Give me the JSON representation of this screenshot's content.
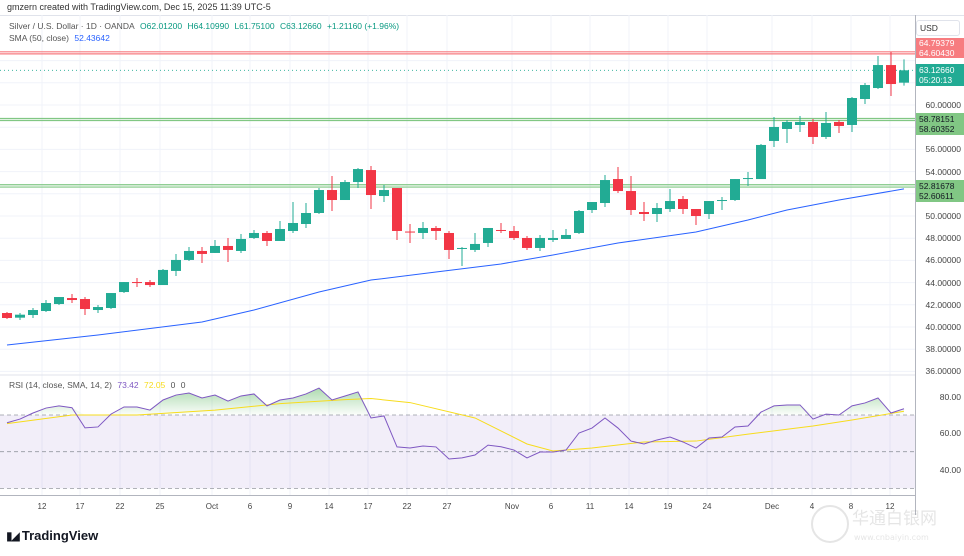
{
  "credit": "gmzern created with TradingView.com, Dec 15, 2025 11:39 UTC-5",
  "symbol": {
    "title": "Silver / U.S. Dollar · 1D · OANDA",
    "open": "O62.01200",
    "high": "H64.10990",
    "low": "L61.75100",
    "close": "C63.12660",
    "change": "+1.21160 (+1.96%)"
  },
  "sma_legend": {
    "label": "SMA (50, close)",
    "value": "52.43642"
  },
  "rsi_legend": {
    "label": "RSI (14, close, SMA, 14, 2)",
    "rsi": "73.42",
    "sma": "72.05",
    "z1": "0",
    "z2": "0"
  },
  "currency": "USD",
  "price_axis": [
    "60.00000",
    "56.00000",
    "54.00000",
    "50.00000",
    "48.00000",
    "46.00000",
    "44.00000",
    "42.00000",
    "40.00000",
    "38.00000",
    "36.00000"
  ],
  "rsi_axis": [
    "80.00",
    "60.00",
    "40.00"
  ],
  "price_tags": {
    "red_top": "64.79379",
    "red_bottom": "64.60430",
    "last": "63.12660",
    "countdown": "05:20:13",
    "green1_top": "58.78151",
    "green1_bottom": "58.60352",
    "green2_top": "52.81678",
    "green2_bottom": "52.60611"
  },
  "colors": {
    "up": "#22ab94",
    "down": "#f23645",
    "sma": "#2962ff",
    "rsi": "#7e57c2",
    "rsi_sma": "#f7dc1c",
    "level_green": "#81c784",
    "level_red": "#f77c80"
  },
  "x_ticks": [
    "12",
    "17",
    "22",
    "25",
    "Oct",
    "6",
    "9",
    "14",
    "17",
    "22",
    "27",
    "Nov",
    "6",
    "11",
    "14",
    "19",
    "24",
    "Dec",
    "4",
    "8",
    "12"
  ],
  "brand": "TradingView",
  "watermark": "华通白银网 www.cnbaiyin.com",
  "chart_data": {
    "type": "candlestick",
    "ohlc": [
      [
        41.26,
        41.35,
        40.72,
        40.81
      ],
      [
        40.84,
        41.26,
        40.63,
        41.11
      ],
      [
        41.08,
        41.71,
        40.81,
        41.53
      ],
      [
        41.44,
        42.43,
        41.35,
        42.16
      ],
      [
        42.07,
        42.7,
        41.98,
        42.7
      ],
      [
        42.61,
        42.97,
        42.16,
        42.43
      ],
      [
        42.52,
        42.7,
        41.08,
        41.62
      ],
      [
        41.53,
        41.98,
        41.26,
        41.8
      ],
      [
        41.71,
        43.06,
        41.62,
        43.06
      ],
      [
        43.15,
        44.05,
        43.06,
        44.05
      ],
      [
        44.05,
        44.41,
        43.6,
        44.0
      ],
      [
        44.05,
        44.23,
        43.6,
        43.78
      ],
      [
        43.78,
        45.22,
        43.78,
        45.14
      ],
      [
        45.05,
        46.58,
        44.59,
        46.04
      ],
      [
        46.04,
        47.21,
        45.95,
        46.85
      ],
      [
        46.85,
        47.21,
        45.77,
        46.58
      ],
      [
        46.67,
        47.84,
        46.67,
        47.3
      ],
      [
        47.3,
        48.02,
        45.86,
        46.94
      ],
      [
        46.85,
        48.38,
        46.67,
        47.93
      ],
      [
        48.02,
        48.74,
        47.93,
        48.47
      ],
      [
        48.47,
        48.65,
        47.3,
        47.75
      ],
      [
        47.75,
        49.55,
        47.75,
        48.83
      ],
      [
        48.65,
        51.26,
        48.47,
        49.37
      ],
      [
        49.28,
        51.17,
        48.92,
        50.27
      ],
      [
        50.27,
        52.52,
        50.18,
        52.34
      ],
      [
        52.34,
        53.6,
        50.45,
        51.44
      ],
      [
        51.44,
        53.24,
        51.44,
        53.06
      ],
      [
        53.06,
        54.32,
        52.52,
        54.23
      ],
      [
        54.14,
        54.5,
        50.63,
        51.89
      ],
      [
        51.8,
        52.79,
        51.26,
        52.34
      ],
      [
        52.52,
        52.52,
        47.84,
        48.65
      ],
      [
        48.6,
        49.28,
        47.57,
        48.56
      ],
      [
        48.47,
        49.46,
        47.93,
        48.92
      ],
      [
        48.92,
        49.1,
        47.84,
        48.65
      ],
      [
        48.47,
        48.65,
        46.13,
        46.94
      ],
      [
        47.03,
        47.21,
        45.5,
        47.12
      ],
      [
        46.94,
        48.47,
        46.76,
        47.48
      ],
      [
        47.57,
        48.92,
        47.21,
        48.92
      ],
      [
        48.74,
        49.37,
        48.47,
        48.65
      ],
      [
        48.65,
        49.1,
        47.84,
        48.02
      ],
      [
        48.02,
        48.2,
        46.94,
        47.12
      ],
      [
        47.12,
        48.29,
        46.85,
        48.02
      ],
      [
        47.84,
        48.74,
        47.66,
        48.02
      ],
      [
        47.93,
        48.83,
        47.93,
        48.29
      ],
      [
        48.47,
        50.54,
        48.38,
        50.45
      ],
      [
        50.54,
        51.26,
        50.27,
        51.26
      ],
      [
        51.17,
        53.69,
        50.81,
        53.24
      ],
      [
        53.33,
        54.41,
        52.07,
        52.25
      ],
      [
        52.25,
        53.6,
        50.09,
        50.54
      ],
      [
        50.36,
        51.26,
        49.55,
        50.18
      ],
      [
        50.18,
        51.17,
        49.46,
        50.72
      ],
      [
        50.63,
        52.43,
        50.36,
        51.35
      ],
      [
        51.53,
        51.8,
        50.18,
        50.63
      ],
      [
        50.63,
        50.63,
        49.19,
        50.0
      ],
      [
        50.18,
        51.35,
        49.73,
        51.35
      ],
      [
        51.4,
        51.71,
        50.54,
        51.44
      ],
      [
        51.44,
        53.33,
        51.35,
        53.33
      ],
      [
        53.38,
        53.96,
        52.7,
        53.42
      ],
      [
        53.33,
        56.49,
        53.33,
        56.4
      ],
      [
        56.76,
        58.92,
        56.22,
        58.02
      ],
      [
        57.84,
        58.65,
        56.58,
        58.47
      ],
      [
        58.2,
        59.01,
        57.57,
        58.47
      ],
      [
        58.47,
        58.74,
        56.49,
        57.12
      ],
      [
        57.12,
        59.37,
        56.94,
        58.38
      ],
      [
        58.47,
        58.65,
        57.48,
        58.11
      ],
      [
        58.2,
        60.72,
        57.57,
        60.63
      ],
      [
        60.54,
        61.98,
        60.09,
        61.8
      ],
      [
        61.53,
        64.41,
        61.44,
        63.6
      ],
      [
        63.6,
        64.77,
        60.81,
        61.89
      ],
      [
        62.012,
        64.1099,
        61.751,
        63.1266
      ]
    ],
    "sma50": [
      [
        1,
        38.38
      ],
      [
        8,
        39.28
      ],
      [
        16,
        40.45
      ],
      [
        20,
        41.53
      ],
      [
        25,
        43.15
      ],
      [
        29,
        44.23
      ],
      [
        34,
        44.95
      ],
      [
        39,
        45.68
      ],
      [
        43,
        46.49
      ],
      [
        48,
        47.57
      ],
      [
        54,
        48.56
      ],
      [
        58,
        49.64
      ],
      [
        61,
        50.54
      ],
      [
        65,
        51.44
      ],
      [
        70,
        52.44
      ]
    ],
    "levels": [
      64.79379,
      64.6043,
      58.78151,
      58.60352,
      52.81678,
      52.60611
    ],
    "rsi": [
      65.8,
      67.8,
      71.1,
      73.8,
      75,
      74,
      63,
      63.5,
      70.5,
      74.4,
      74.4,
      72.7,
      78.2,
      80.9,
      82,
      79.3,
      80.9,
      77.6,
      80.4,
      81.5,
      75,
      78.2,
      79.3,
      81.5,
      84.7,
      78.2,
      80.4,
      82.6,
      68.4,
      69.5,
      52.6,
      52,
      53.1,
      52.6,
      46,
      46.6,
      48.2,
      53.6,
      52.7,
      50.9,
      46.6,
      49.8,
      49.8,
      50.9,
      60.2,
      62.9,
      68.4,
      62.9,
      55.8,
      54.2,
      56.4,
      58,
      55.3,
      52,
      57.5,
      58,
      63.5,
      64,
      71.6,
      75,
      75.5,
      75.5,
      67.8,
      70.5,
      70,
      75,
      76.6,
      79.3,
      71.1,
      73.42
    ],
    "rsi_sma": [
      [
        1,
        65.3
      ],
      [
        6,
        70
      ],
      [
        11,
        70
      ],
      [
        17,
        72.7
      ],
      [
        22,
        76.2
      ],
      [
        27,
        78.4
      ],
      [
        29,
        79
      ],
      [
        32,
        76.8
      ],
      [
        37,
        68.4
      ],
      [
        41,
        54.2
      ],
      [
        43,
        50.4
      ],
      [
        46,
        52
      ],
      [
        50,
        55.3
      ],
      [
        54,
        55.8
      ],
      [
        58,
        59.6
      ],
      [
        63,
        64
      ],
      [
        66,
        67.3
      ],
      [
        70,
        72.05
      ]
    ],
    "rsi_bands": [
      70,
      50,
      30
    ],
    "price_range": [
      35.5,
      65.5
    ],
    "rsi_range": [
      28,
      90
    ]
  }
}
